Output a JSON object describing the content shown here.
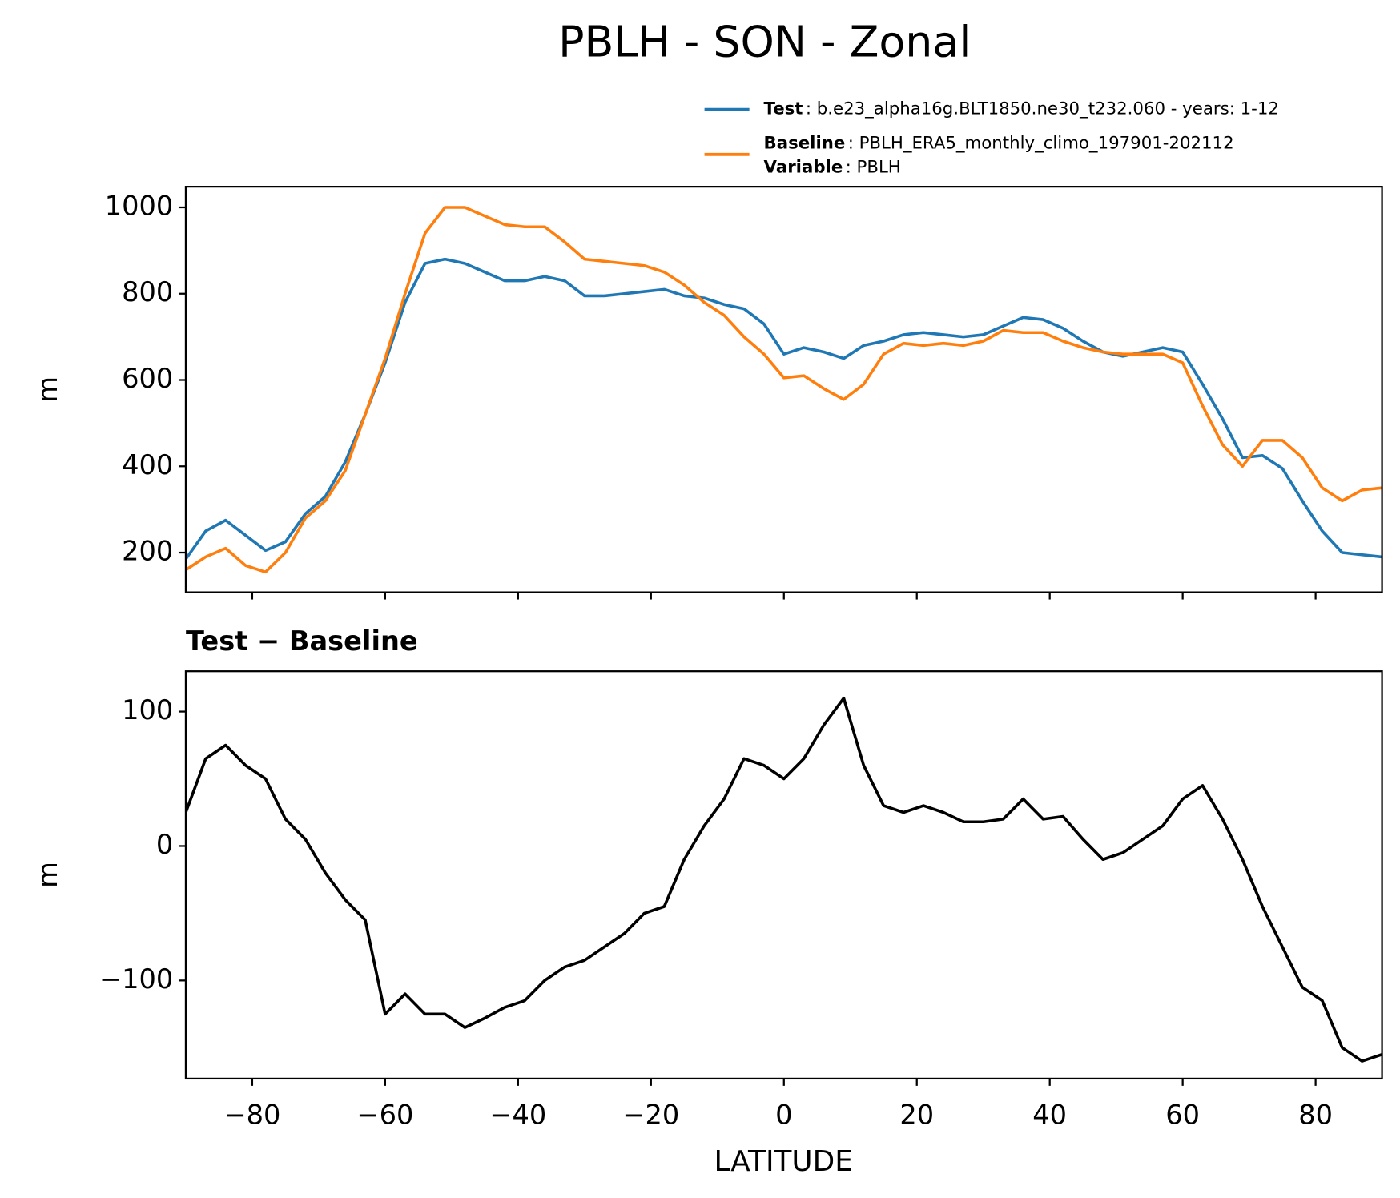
{
  "chart_data": [
    {
      "type": "line",
      "title": "PBLH - SON - Zonal",
      "ylabel": "m",
      "x": [
        -90,
        -87,
        -84,
        -81,
        -78,
        -75,
        -72,
        -69,
        -66,
        -63,
        -60,
        -57,
        -54,
        -51,
        -48,
        -45,
        -42,
        -39,
        -36,
        -33,
        -30,
        -27,
        -24,
        -21,
        -18,
        -15,
        -12,
        -9,
        -6,
        -3,
        0,
        3,
        6,
        9,
        12,
        15,
        18,
        21,
        24,
        27,
        30,
        33,
        36,
        39,
        42,
        45,
        48,
        51,
        54,
        57,
        60,
        63,
        66,
        69,
        72,
        75,
        78,
        81,
        84,
        87,
        90
      ],
      "series": [
        {
          "name": "Test",
          "label": ": b.e23_alpha16g.BLT1850.ne30_t232.060 - years: 1-12",
          "color": "#1f77b4",
          "values": [
            185,
            250,
            275,
            240,
            205,
            225,
            290,
            330,
            410,
            520,
            640,
            780,
            870,
            880,
            870,
            850,
            830,
            830,
            840,
            830,
            795,
            795,
            800,
            805,
            810,
            795,
            790,
            775,
            765,
            730,
            660,
            675,
            665,
            650,
            680,
            690,
            705,
            710,
            705,
            700,
            705,
            725,
            745,
            740,
            720,
            690,
            665,
            655,
            665,
            675,
            665,
            590,
            510,
            420,
            425,
            395,
            320,
            250,
            200,
            195,
            190
          ]
        },
        {
          "name": "Baseline",
          "label": ": PBLH_ERA5_monthly_climo_197901-202112",
          "color": "#ff7f0e",
          "values": [
            160,
            190,
            210,
            170,
            155,
            200,
            280,
            320,
            390,
            520,
            650,
            800,
            940,
            1000,
            1000,
            980,
            960,
            955,
            955,
            920,
            880,
            875,
            870,
            865,
            850,
            820,
            780,
            750,
            700,
            660,
            605,
            610,
            580,
            555,
            590,
            660,
            685,
            680,
            685,
            680,
            690,
            715,
            710,
            710,
            690,
            675,
            665,
            660,
            660,
            660,
            640,
            540,
            450,
            400,
            460,
            460,
            420,
            350,
            320,
            345,
            350
          ]
        }
      ],
      "legend_extra": {
        "name": "Variable",
        "label": ": PBLH"
      },
      "xlim": [
        -90,
        90
      ],
      "xticks": [
        -80,
        -60,
        -40,
        -20,
        0,
        20,
        40,
        60,
        80
      ],
      "ylim": [
        108,
        1048
      ],
      "yticks": [
        200,
        400,
        600,
        800,
        1000
      ]
    },
    {
      "type": "line",
      "title": "Test − Baseline",
      "ylabel": "m",
      "xlabel": "LATITUDE",
      "x": [
        -90,
        -87,
        -84,
        -81,
        -78,
        -75,
        -72,
        -69,
        -66,
        -63,
        -60,
        -57,
        -54,
        -51,
        -48,
        -45,
        -42,
        -39,
        -36,
        -33,
        -30,
        -27,
        -24,
        -21,
        -18,
        -15,
        -12,
        -9,
        -6,
        -3,
        0,
        3,
        6,
        9,
        12,
        15,
        18,
        21,
        24,
        27,
        30,
        33,
        36,
        39,
        42,
        45,
        48,
        51,
        54,
        57,
        60,
        63,
        66,
        69,
        72,
        75,
        78,
        81,
        84,
        87,
        90
      ],
      "series": [
        {
          "color": "#000000",
          "values": [
            25,
            65,
            75,
            60,
            50,
            20,
            5,
            -20,
            -40,
            -55,
            -125,
            -110,
            -125,
            -125,
            -135,
            -128,
            -120,
            -115,
            -100,
            -90,
            -85,
            -75,
            -65,
            -50,
            -45,
            -10,
            15,
            35,
            65,
            60,
            50,
            65,
            90,
            110,
            60,
            30,
            25,
            30,
            25,
            18,
            18,
            20,
            35,
            20,
            22,
            5,
            -10,
            -5,
            5,
            15,
            35,
            45,
            20,
            -10,
            -45,
            -75,
            -105,
            -115,
            -150,
            -160,
            -155
          ]
        }
      ],
      "xlim": [
        -90,
        90
      ],
      "xticks": [
        {
          "value": -80,
          "label": "−80"
        },
        {
          "value": -60,
          "label": "−60"
        },
        {
          "value": -40,
          "label": "−40"
        },
        {
          "value": -20,
          "label": "−20"
        },
        0,
        20,
        40,
        60,
        80
      ],
      "ylim": [
        -173,
        130
      ],
      "yticks": [
        {
          "value": -100,
          "label": "−100"
        },
        0,
        100
      ]
    }
  ]
}
